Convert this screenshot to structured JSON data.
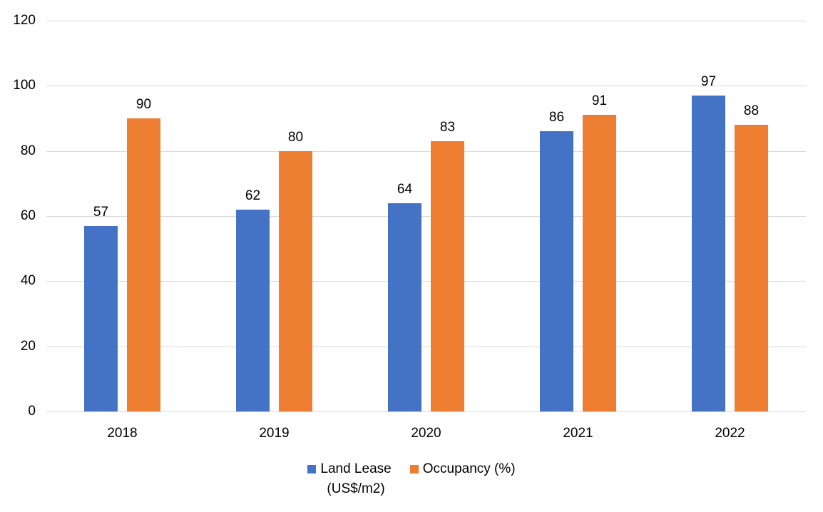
{
  "chart_data": {
    "type": "bar",
    "title": "",
    "xlabel": "",
    "ylabel": "",
    "categories": [
      "2018",
      "2019",
      "2020",
      "2021",
      "2022"
    ],
    "series": [
      {
        "name": "Land Lease (US$/m2)",
        "legend_lines": [
          "Land Lease",
          "(US$/m2)"
        ],
        "color": "#4472C4",
        "values": [
          57,
          62,
          64,
          86,
          97
        ]
      },
      {
        "name": "Occupancy (%)",
        "legend_lines": [
          "Occupancy (%)"
        ],
        "color": "#ED7D31",
        "values": [
          90,
          80,
          83,
          91,
          88
        ]
      }
    ],
    "ylim": [
      0,
      120
    ],
    "yticks": [
      0,
      20,
      40,
      60,
      80,
      100,
      120
    ],
    "grid": true,
    "data_labels": true,
    "legend_position": "bottom",
    "colors": {
      "gridline": "#D9D9D9",
      "text": "#000000",
      "background": "#FFFFFF"
    }
  }
}
